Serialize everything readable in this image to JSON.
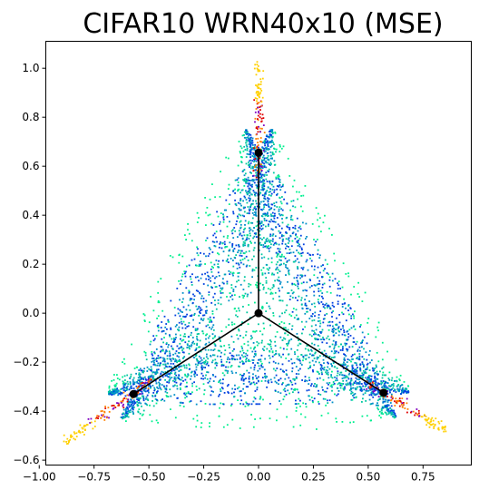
{
  "chart_data": {
    "type": "scatter",
    "title": "CIFAR10 WRN40x10 (MSE)",
    "xlabel": "",
    "ylabel": "",
    "xlim": [
      -0.97,
      0.97
    ],
    "ylim": [
      -0.62,
      1.11
    ],
    "x_ticks": [
      -1.0,
      -0.75,
      -0.5,
      -0.25,
      0.0,
      0.25,
      0.5,
      0.75
    ],
    "x_tick_labels": [
      "−1.00",
      "−0.75",
      "−0.50",
      "−0.25",
      "0.00",
      "0.25",
      "0.50",
      "0.75"
    ],
    "y_ticks": [
      -0.6,
      -0.4,
      -0.2,
      0.0,
      0.2,
      0.4,
      0.6,
      0.8,
      1.0
    ],
    "y_tick_labels": [
      "−0.6",
      "−0.4",
      "−0.2",
      "0.0",
      "0.2",
      "0.4",
      "0.6",
      "0.8",
      "1.0"
    ],
    "grid": false,
    "legend": "none",
    "centroids": {
      "x": [
        0.0,
        -0.57,
        0.57,
        0.0
      ],
      "y": [
        0.655,
        -0.33,
        -0.325,
        0.0
      ]
    },
    "lines": [
      {
        "x": [
          0.0,
          0.0
        ],
        "y": [
          0.0,
          0.655
        ]
      },
      {
        "x": [
          0.0,
          -0.57
        ],
        "y": [
          0.0,
          -0.33
        ]
      },
      {
        "x": [
          0.0,
          0.57
        ],
        "y": [
          0.0,
          -0.325
        ]
      }
    ],
    "point_colors": [
      "#0040e0",
      "#0090c8",
      "#00c8a0",
      "#00f090",
      "#ff8000",
      "#ffd000",
      "#e00000",
      "#8000c0"
    ],
    "line_color": "#000000",
    "centroid_color": "#000000"
  }
}
